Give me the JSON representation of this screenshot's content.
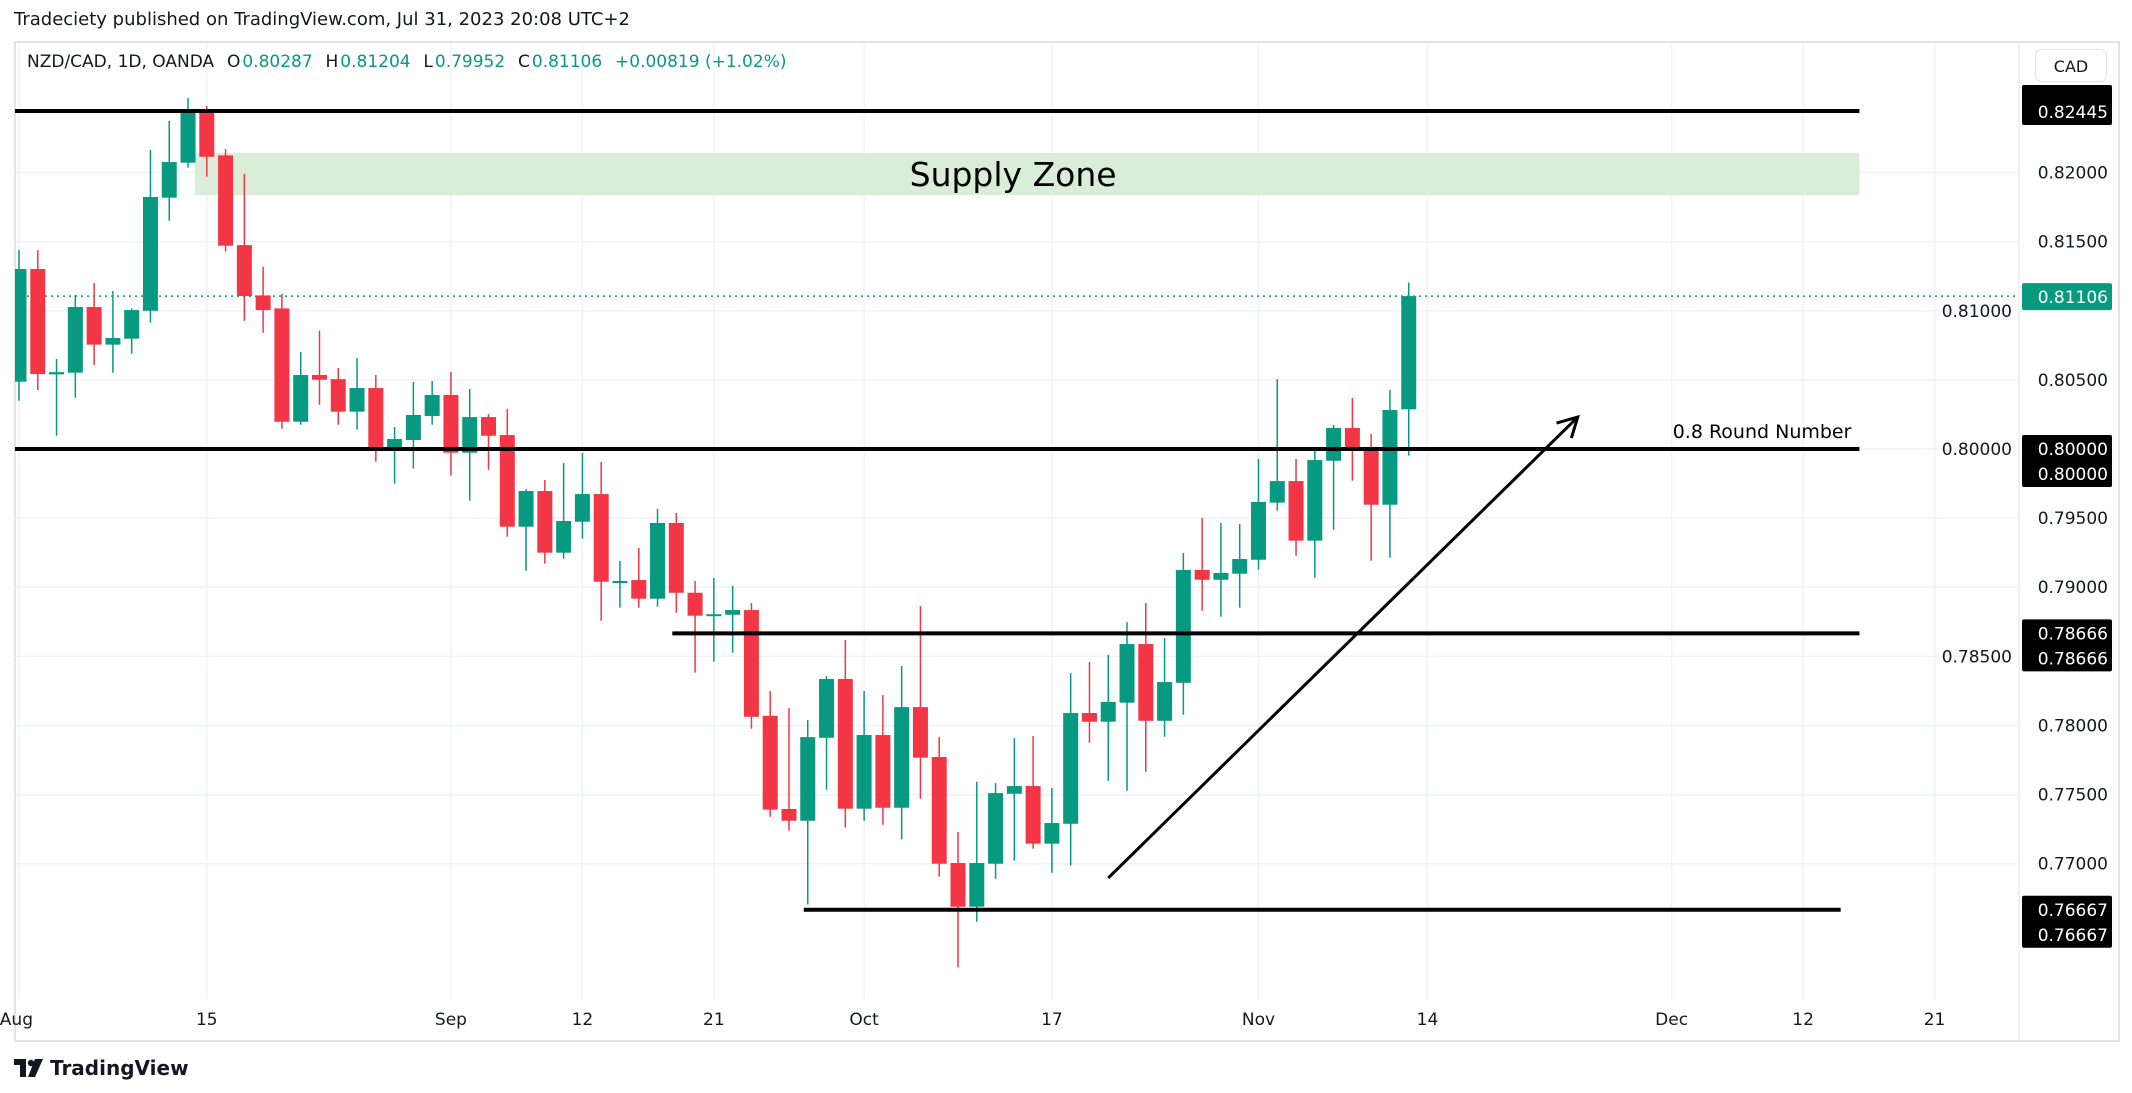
{
  "header": {
    "published": "Tradeciety published on TradingView.com, Jul 31, 2023 20:08 UTC+2"
  },
  "legend": {
    "symbol": "NZD/CAD, 1D, OANDA",
    "o_label": "O",
    "o": "0.80287",
    "h_label": "H",
    "h": "0.81204",
    "l_label": "L",
    "l": "0.79952",
    "c_label": "C",
    "c": "0.81106",
    "change": "+0.00819 (+1.02%)"
  },
  "currency_button": "CAD",
  "logo": {
    "text": "TradingView",
    "icon": "tradingview-logo-icon"
  },
  "colors": {
    "up": "#089981",
    "down": "#F23645",
    "zone": "#d9edd9",
    "line": "#000000",
    "last_price": "#089981"
  },
  "chart_data": {
    "type": "candlestick",
    "ohlc_order": [
      "open",
      "high",
      "low",
      "close"
    ],
    "candles": [
      [
        0.80487,
        0.81439,
        0.80349,
        0.81302
      ],
      [
        0.81302,
        0.81439,
        0.80427,
        0.80542
      ],
      [
        0.8054,
        0.80651,
        0.80096,
        0.80556
      ],
      [
        0.80552,
        0.81114,
        0.80371,
        0.81027
      ],
      [
        0.81027,
        0.81201,
        0.80608,
        0.80755
      ],
      [
        0.80755,
        0.81143,
        0.80552,
        0.80803
      ],
      [
        0.80798,
        0.81017,
        0.80689,
        0.81005
      ],
      [
        0.81,
        0.82163,
        0.80914,
        0.81823
      ],
      [
        0.81818,
        0.82373,
        0.81651,
        0.82076
      ],
      [
        0.82071,
        0.82539,
        0.82035,
        0.82445
      ],
      [
        0.82445,
        0.82481,
        0.8197,
        0.82114
      ],
      [
        0.82124,
        0.8217,
        0.81427,
        0.81471
      ],
      [
        0.81475,
        0.81989,
        0.80928,
        0.81107
      ],
      [
        0.81111,
        0.81319,
        0.80841,
        0.81005
      ],
      [
        0.81017,
        0.81121,
        0.80147,
        0.80197
      ],
      [
        0.80197,
        0.80702,
        0.80176,
        0.80535
      ],
      [
        0.80535,
        0.80856,
        0.8032,
        0.80501
      ],
      [
        0.80505,
        0.80586,
        0.80176,
        0.8027
      ],
      [
        0.8027,
        0.80658,
        0.8014,
        0.80441
      ],
      [
        0.80441,
        0.80535,
        0.79908,
        0.79988
      ],
      [
        0.79988,
        0.80159,
        0.79749,
        0.80072
      ],
      [
        0.80065,
        0.80485,
        0.79858,
        0.80246
      ],
      [
        0.80239,
        0.80492,
        0.80176,
        0.80391
      ],
      [
        0.80391,
        0.80557,
        0.79807,
        0.79973
      ],
      [
        0.79973,
        0.80434,
        0.79626,
        0.80231
      ],
      [
        0.80231,
        0.80253,
        0.7985,
        0.80096
      ],
      [
        0.80101,
        0.80289,
        0.79366,
        0.79438
      ],
      [
        0.79438,
        0.79711,
        0.79119,
        0.79696
      ],
      [
        0.79696,
        0.79776,
        0.7917,
        0.7925
      ],
      [
        0.7925,
        0.79899,
        0.79206,
        0.79479
      ],
      [
        0.79474,
        0.79971,
        0.79351,
        0.79674
      ],
      [
        0.79674,
        0.79906,
        0.78758,
        0.7904
      ],
      [
        0.79035,
        0.7919,
        0.78852,
        0.79045
      ],
      [
        0.79052,
        0.79284,
        0.78852,
        0.78917
      ],
      [
        0.78917,
        0.79566,
        0.78859,
        0.79465
      ],
      [
        0.79465,
        0.79537,
        0.78816,
        0.7896
      ],
      [
        0.7896,
        0.79045,
        0.78382,
        0.78794
      ],
      [
        0.78795,
        0.79067,
        0.78461,
        0.78805
      ],
      [
        0.78801,
        0.79009,
        0.78526,
        0.78835
      ],
      [
        0.78835,
        0.78886,
        0.77977,
        0.78063
      ],
      [
        0.7807,
        0.78249,
        0.7734,
        0.77391
      ],
      [
        0.77396,
        0.78126,
        0.77239,
        0.77311
      ],
      [
        0.77311,
        0.78039,
        0.76705,
        0.77916
      ],
      [
        0.77911,
        0.78358,
        0.77535,
        0.78336
      ],
      [
        0.78336,
        0.78618,
        0.77261,
        0.77398
      ],
      [
        0.77398,
        0.78249,
        0.77311,
        0.77931
      ],
      [
        0.77931,
        0.7822,
        0.77282,
        0.77405
      ],
      [
        0.77405,
        0.7843,
        0.77176,
        0.78133
      ],
      [
        0.78133,
        0.78864,
        0.7747,
        0.77767
      ],
      [
        0.77772,
        0.77917,
        0.76906,
        0.77
      ],
      [
        0.77005,
        0.77229,
        0.7625,
        0.76689
      ],
      [
        0.76689,
        0.77593,
        0.7658,
        0.77005
      ],
      [
        0.77,
        0.77583,
        0.76891,
        0.77511
      ],
      [
        0.77506,
        0.77909,
        0.77022,
        0.77562
      ],
      [
        0.77562,
        0.77923,
        0.77109,
        0.77145
      ],
      [
        0.77145,
        0.77548,
        0.76935,
        0.77294
      ],
      [
        0.77289,
        0.78379,
        0.76986,
        0.7809
      ],
      [
        0.7809,
        0.78459,
        0.77875,
        0.78027
      ],
      [
        0.78027,
        0.7851,
        0.776,
        0.7817
      ],
      [
        0.78165,
        0.78748,
        0.77528,
        0.78589
      ],
      [
        0.78589,
        0.78886,
        0.77665,
        0.78034
      ],
      [
        0.78034,
        0.78633,
        0.77919,
        0.78314
      ],
      [
        0.78309,
        0.79248,
        0.78078,
        0.79125
      ],
      [
        0.79125,
        0.79501,
        0.7883,
        0.79054
      ],
      [
        0.79054,
        0.79465,
        0.78787,
        0.79103
      ],
      [
        0.79098,
        0.79457,
        0.78852,
        0.79204
      ],
      [
        0.79199,
        0.79928,
        0.79127,
        0.79617
      ],
      [
        0.79612,
        0.80506,
        0.79553,
        0.79768
      ],
      [
        0.79768,
        0.79928,
        0.79228,
        0.79337
      ],
      [
        0.79337,
        0.79993,
        0.79069,
        0.7992
      ],
      [
        0.79915,
        0.80174,
        0.79416,
        0.80152
      ],
      [
        0.80152,
        0.80369,
        0.79771,
        0.80009
      ],
      [
        0.80009,
        0.80108,
        0.79192,
        0.79597
      ],
      [
        0.79597,
        0.80427,
        0.79214,
        0.80282
      ],
      [
        0.80287,
        0.81204,
        0.79952,
        0.81106
      ]
    ],
    "x_ticks": [
      {
        "label": "Aug",
        "bar": 0
      },
      {
        "label": "15",
        "bar": 10
      },
      {
        "label": "Sep",
        "bar": 23
      },
      {
        "label": "12",
        "bar": 30
      },
      {
        "label": "21",
        "bar": 37
      },
      {
        "label": "Oct",
        "bar": 45
      },
      {
        "label": "17",
        "bar": 55
      },
      {
        "label": "Nov",
        "bar": 66
      },
      {
        "label": "14",
        "bar": 75
      },
      {
        "label": "Dec",
        "bar": 88
      },
      {
        "label": "12",
        "bar": 95
      },
      {
        "label": "21",
        "bar": 102
      }
    ],
    "y_ticks": [
      "0.82000",
      "0.81500",
      "0.81000",
      "0.80500",
      "0.80000",
      "0.79500",
      "0.79000",
      "0.78500",
      "0.78000",
      "0.77500",
      "0.77000"
    ],
    "y_range": [
      0.7598,
      0.8283
    ],
    "grid": true,
    "last_price": {
      "value": 0.81106,
      "label": "0.81106"
    },
    "drawings": {
      "levels": [
        {
          "price": 0.82445,
          "from_bar": 0,
          "to_bar": 98,
          "tag": "0.82445",
          "text": ""
        },
        {
          "price": 0.8,
          "from_bar": 0,
          "to_bar": 98,
          "tag": "0.80000",
          "text": "0.8 Round Number"
        },
        {
          "price": 0.78666,
          "from_bar": 35,
          "to_bar": 98,
          "tag": "0.78666",
          "text": ""
        },
        {
          "price": 0.76667,
          "from_bar": 42,
          "to_bar": 97,
          "tag": "0.76667",
          "text": ""
        }
      ],
      "supply_zone": {
        "low": 0.81837,
        "high": 0.82141,
        "from_bar": 10,
        "to_bar": 98,
        "label": "Supply Zone"
      },
      "trend_arrow": {
        "from": {
          "bar": 58,
          "price": 0.76897
        },
        "to": {
          "bar": 83,
          "price": 0.80231
        }
      }
    }
  }
}
